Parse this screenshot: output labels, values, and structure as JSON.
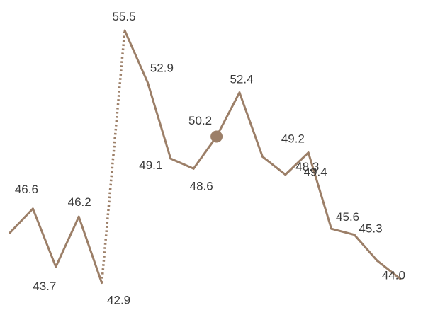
{
  "chart_data": {
    "type": "line",
    "x": [
      1,
      2,
      3,
      4,
      5,
      6,
      7,
      8,
      9,
      10,
      11,
      12,
      13,
      14,
      15,
      16,
      17,
      18
    ],
    "series": [
      {
        "values": [
          45.4,
          46.6,
          43.7,
          46.2,
          42.9,
          55.5,
          52.9,
          49.1,
          48.6,
          50.2,
          52.4,
          49.2,
          48.3,
          49.4,
          45.6,
          45.3,
          44.0,
          43.1
        ],
        "color": "#9c7f68"
      }
    ],
    "data_labels": [
      "",
      "46.6",
      "43.7",
      "46.2",
      "42.9",
      "55.5",
      "52.9",
      "49.1",
      "48.6",
      "50.2",
      "52.4",
      "49.2",
      "48.3",
      "49.4",
      "45.6",
      "45.3",
      "44.0",
      ""
    ],
    "dotted_segment": [
      5,
      6
    ],
    "highlight_point": 10,
    "grid": false,
    "legend": "none"
  }
}
